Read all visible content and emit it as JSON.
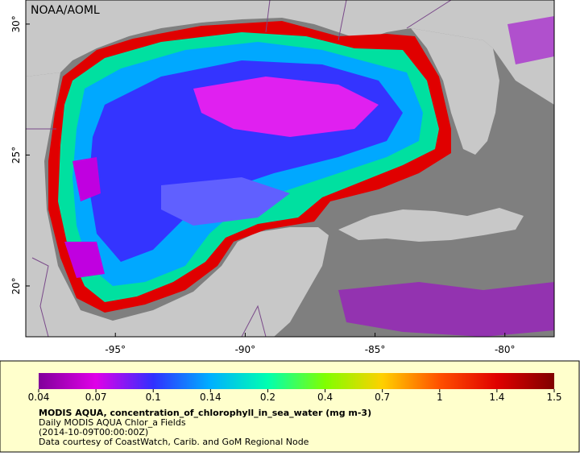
{
  "map": {
    "source_label": "NOAA/AOML",
    "xlim": [
      -98.45,
      -78.1
    ],
    "ylim": [
      18.06,
      30.92
    ],
    "xticks": [
      {
        "value": -95,
        "label": "-95°"
      },
      {
        "value": -90,
        "label": "-90°"
      },
      {
        "value": -85,
        "label": "-85°"
      },
      {
        "value": -80,
        "label": "-80°"
      }
    ],
    "yticks": [
      {
        "value": 20,
        "label": "20°"
      },
      {
        "value": 25,
        "label": "25°"
      },
      {
        "value": 30,
        "label": "30°"
      }
    ]
  },
  "colorbar": {
    "ticks": [
      0.04,
      0.07,
      0.1,
      0.14,
      0.2,
      0.4,
      0.7,
      1,
      1.4,
      1.5
    ],
    "colors": [
      "#80009a",
      "#e000e8",
      "#3030ff",
      "#00b0ff",
      "#00ffb0",
      "#80ff00",
      "#ffd000",
      "#ff5000",
      "#e00000",
      "#800000"
    ]
  },
  "caption": {
    "title": "MODIS AQUA, concentration_of_chlorophyll_in_sea_water (mg m-3)",
    "line1": "Daily MODIS AQUA Chlor_a Fields",
    "line2": "(2014-10-09T00:00:00Z)",
    "line3": "Data courtesy of CoastWatch, Carib. and GoM Regional Node"
  }
}
